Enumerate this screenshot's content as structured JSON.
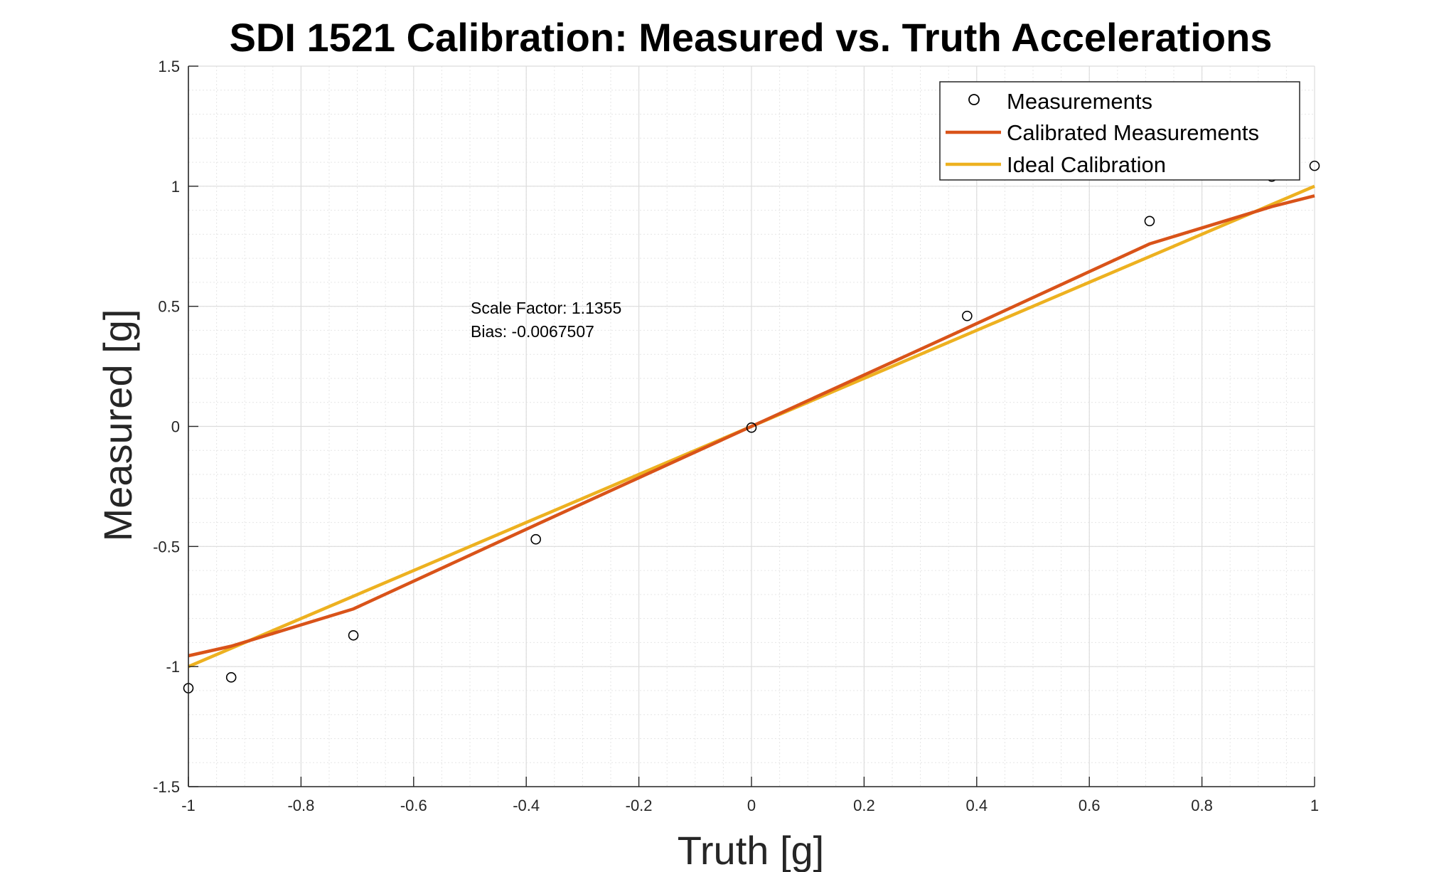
{
  "chart_data": {
    "type": "scatter",
    "title": "SDI 1521 Calibration: Measured vs. Truth Accelerations",
    "xlabel": "Truth [g]",
    "ylabel": "Measured [g]",
    "xlim": [
      -1,
      1
    ],
    "ylim": [
      -1.5,
      1.5
    ],
    "grid": true,
    "minor_grid": true,
    "legend_position": "top-right",
    "x_ticks": [
      -1,
      -0.8,
      -0.6,
      -0.4,
      -0.2,
      0,
      0.2,
      0.4,
      0.6,
      0.8,
      1
    ],
    "x_tick_labels": [
      "-1",
      "-0.8",
      "-0.6",
      "-0.4",
      "-0.2",
      "0",
      "0.2",
      "0.4",
      "0.6",
      "0.8",
      "1"
    ],
    "y_ticks": [
      -1.5,
      -1,
      -0.5,
      0,
      0.5,
      1,
      1.5
    ],
    "y_tick_labels": [
      "-1.5",
      "-1",
      "-0.5",
      "0",
      "0.5",
      "1",
      "1.5"
    ],
    "series": [
      {
        "name": "Measurements",
        "kind": "markers",
        "marker": "open-circle",
        "color": "#000000",
        "x": [
          -1,
          -0.924,
          -0.707,
          -0.383,
          0,
          0.383,
          0.707,
          0.924,
          1
        ],
        "y": [
          -1.09,
          -1.045,
          -0.87,
          -0.47,
          -0.005,
          0.46,
          0.855,
          1.04,
          1.085
        ]
      },
      {
        "name": "Calibrated Measurements",
        "kind": "line",
        "color": "#D95319",
        "x": [
          -1,
          -0.924,
          -0.707,
          -0.383,
          0,
          0.383,
          0.707,
          0.924,
          1
        ],
        "y": [
          -0.955,
          -0.915,
          -0.76,
          -0.41,
          0,
          0.41,
          0.76,
          0.915,
          0.96
        ]
      },
      {
        "name": "Ideal Calibration",
        "kind": "line",
        "color": "#EDB120",
        "x": [
          -1,
          1
        ],
        "y": [
          -1,
          1
        ]
      }
    ],
    "annotations": [
      "Scale Factor: 1.1355",
      "Bias: -0.0067507"
    ]
  }
}
